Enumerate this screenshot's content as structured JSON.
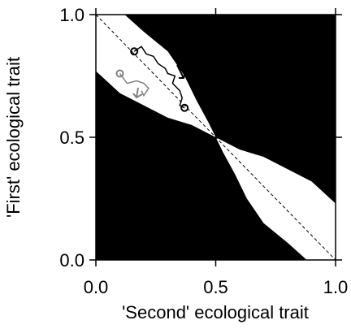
{
  "chart_data": {
    "type": "line",
    "x_label": "'Second' ecological trait",
    "y_label": "'First' ecological trait",
    "xlim": [
      0,
      1
    ],
    "ylim": [
      0,
      1
    ],
    "xticks": [
      {
        "value": 0,
        "label": "0.0"
      },
      {
        "value": 0.5,
        "label": "0.5"
      },
      {
        "value": 1,
        "label": "1.0"
      }
    ],
    "yticks": [
      {
        "value": 0,
        "label": "0.0"
      },
      {
        "value": 0.5,
        "label": "0.5"
      },
      {
        "value": 1,
        "label": "1.0"
      }
    ],
    "background": "#000000",
    "regions": [
      {
        "color": "#ffffff",
        "x": [
          0,
          0.12,
          0.2,
          0.3,
          0.37,
          0.42,
          0.47,
          0.5,
          0.4,
          0.3,
          0.2,
          0.1,
          0
        ],
        "y": [
          1,
          1,
          0.93,
          0.85,
          0.75,
          0.65,
          0.56,
          0.5,
          0.55,
          0.58,
          0.63,
          0.68,
          0.77
        ]
      },
      {
        "color": "#ffffff",
        "x": [
          1,
          0.88,
          0.8,
          0.7,
          0.63,
          0.58,
          0.53,
          0.5,
          0.6,
          0.7,
          0.8,
          0.9,
          1
        ],
        "y": [
          0,
          0,
          0.07,
          0.15,
          0.25,
          0.35,
          0.44,
          0.5,
          0.45,
          0.42,
          0.37,
          0.32,
          0.23
        ]
      }
    ],
    "series": [
      {
        "color": "#000000",
        "markers": [
          "start",
          "end"
        ],
        "x": [
          0.16,
          0.19,
          0.21,
          0.24,
          0.26,
          0.29,
          0.3,
          0.33,
          0.32,
          0.35,
          0.36,
          0.35,
          0.37
        ],
        "values": [
          0.85,
          0.87,
          0.84,
          0.83,
          0.8,
          0.78,
          0.76,
          0.75,
          0.72,
          0.69,
          0.66,
          0.63,
          0.62
        ]
      },
      {
        "color": "#808080",
        "markers": [
          "start"
        ],
        "x": [
          0.1,
          0.13,
          0.17,
          0.2,
          0.22,
          0.2,
          0.19
        ],
        "values": [
          0.76,
          0.72,
          0.73,
          0.72,
          0.7,
          0.67,
          0.69
        ]
      }
    ]
  }
}
